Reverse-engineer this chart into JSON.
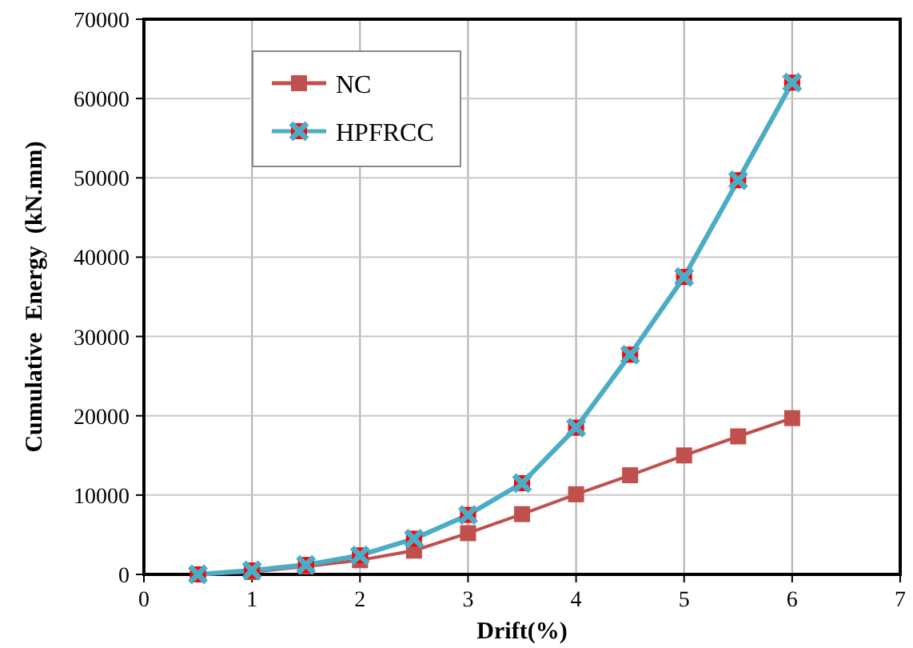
{
  "chart_data": {
    "type": "line",
    "xlabel": "Drift(%)",
    "ylabel": "Cumulative  Energy  (kN.mm)",
    "x": [
      0.5,
      1,
      1.5,
      2,
      2.5,
      3,
      3.5,
      4,
      4.5,
      5,
      5.5,
      6
    ],
    "series": [
      {
        "name": "NC",
        "color": "#c0504d",
        "marker": "square",
        "values": [
          0,
          300,
          1000,
          1800,
          3000,
          5200,
          7600,
          10100,
          12500,
          15000,
          17400,
          19700
        ]
      },
      {
        "name": "HPFRCC",
        "color": "#4bacc6",
        "marker": "cross",
        "values": [
          0,
          500,
          1200,
          2400,
          4500,
          7500,
          11500,
          18500,
          27700,
          37500,
          49700,
          62000
        ]
      }
    ],
    "xlim": [
      0,
      7
    ],
    "xticks": [
      0,
      1,
      2,
      3,
      4,
      5,
      6,
      7
    ],
    "ylim": [
      0,
      70000
    ],
    "yticks": [
      0,
      10000,
      20000,
      30000,
      40000,
      50000,
      60000,
      70000
    ],
    "grid": true,
    "legend": "top left"
  }
}
